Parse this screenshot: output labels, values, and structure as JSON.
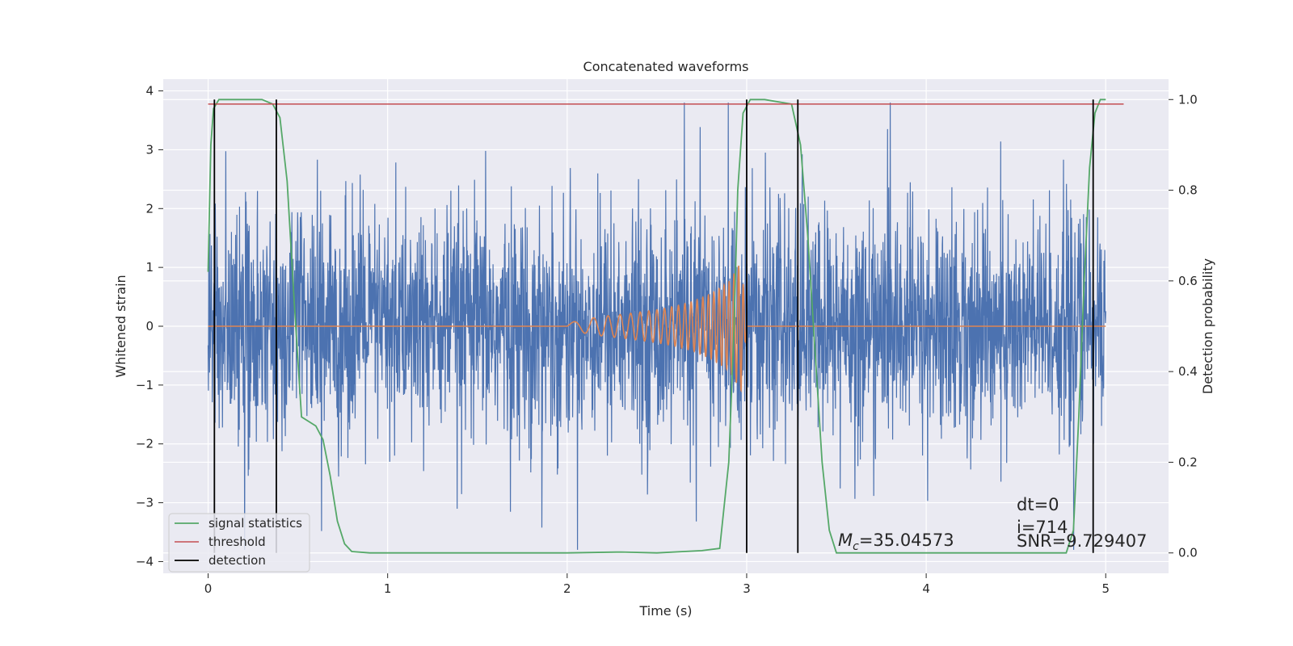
{
  "chart_data": {
    "type": "line",
    "title": "Concatenated waveforms",
    "xlabel": "Time (s)",
    "ylabel": "Whitened strain",
    "y2label": "Detection probability",
    "xlim": [
      -0.25,
      5.35
    ],
    "ylim": [
      -4.2,
      4.2
    ],
    "y2lim": [
      -0.045,
      1.045
    ],
    "xticks": [
      0,
      1,
      2,
      3,
      4,
      5
    ],
    "xtick_labels": [
      "0",
      "1",
      "2",
      "3",
      "4",
      "5"
    ],
    "yticks": [
      -4,
      -3,
      -2,
      -1,
      0,
      1,
      2,
      3,
      4
    ],
    "ytick_labels": [
      "−4",
      "−3",
      "−2",
      "−1",
      "0",
      "1",
      "2",
      "3",
      "4"
    ],
    "y2ticks": [
      0.0,
      0.2,
      0.4,
      0.6,
      0.8,
      1.0
    ],
    "y2tick_labels": [
      "0.0",
      "0.2",
      "0.4",
      "0.6",
      "0.8",
      "1.0"
    ],
    "grid": true,
    "legend_position": "lower-left",
    "colors": {
      "strain": "#4c72b0",
      "template": "#dd8452",
      "signal_statistics": "#55a868",
      "threshold": "#c44e52",
      "detection": "#000000",
      "background": "#eaeaf2",
      "grid": "#ffffff"
    },
    "series": [
      {
        "id": "strain",
        "axis": "left",
        "x_range": [
          0,
          5
        ],
        "y_range_approx": [
          -3.8,
          3.8
        ],
        "note_visible": "dense noisy whitened strain trace"
      },
      {
        "id": "template",
        "axis": "left",
        "x": [
          0,
          2.0,
          2.1,
          2.2,
          2.3,
          2.4,
          2.5,
          2.6,
          2.7,
          2.8,
          2.9,
          2.97,
          3.0,
          5.0
        ],
        "amplitude": [
          0,
          0.05,
          0.12,
          0.17,
          0.2,
          0.24,
          0.28,
          0.34,
          0.42,
          0.55,
          0.75,
          1.1,
          0,
          0
        ]
      },
      {
        "name": "signal statistics",
        "axis": "right",
        "x": [
          0,
          0.015,
          0.03,
          0.06,
          0.1,
          0.3,
          0.36,
          0.4,
          0.44,
          0.48,
          0.52,
          0.56,
          0.6,
          0.64,
          0.68,
          0.72,
          0.76,
          0.8,
          0.9,
          1.0,
          2.0,
          2.3,
          2.5,
          2.75,
          2.85,
          2.9,
          2.93,
          2.95,
          2.98,
          3.02,
          3.1,
          3.25,
          3.3,
          3.34,
          3.38,
          3.42,
          3.46,
          3.5,
          3.7,
          4.0,
          4.5,
          4.78,
          4.82,
          4.85,
          4.88,
          4.91,
          4.94,
          4.97,
          5.0
        ],
        "y": [
          0.62,
          0.9,
          0.98,
          1.0,
          1.0,
          1.0,
          0.99,
          0.96,
          0.82,
          0.55,
          0.3,
          0.29,
          0.28,
          0.25,
          0.17,
          0.07,
          0.02,
          0.003,
          0.0,
          0.0,
          0.0,
          0.002,
          0.0,
          0.005,
          0.01,
          0.2,
          0.5,
          0.8,
          0.97,
          1.0,
          1.0,
          0.99,
          0.9,
          0.7,
          0.45,
          0.2,
          0.05,
          0.0,
          0.0,
          0.0,
          0.0,
          0.0,
          0.05,
          0.3,
          0.6,
          0.85,
          0.97,
          1.0,
          1.0
        ]
      },
      {
        "name": "threshold",
        "axis": "right",
        "x": [
          0,
          5.1
        ],
        "y": [
          0.99,
          0.99
        ]
      },
      {
        "name": "detection",
        "axis": "right",
        "x": [
          0.035,
          0.38,
          3.0,
          3.285,
          4.93
        ],
        "y_range": [
          0.0,
          1.0
        ]
      }
    ],
    "legend": [
      "signal statistics",
      "threshold",
      "detection"
    ],
    "annotations": {
      "mc_symbol": "M",
      "mc_subscript": "c",
      "mc_value": "=35.04573",
      "dt": "dt=0",
      "i": "i=714",
      "snr": "SNR=9.729407"
    }
  }
}
